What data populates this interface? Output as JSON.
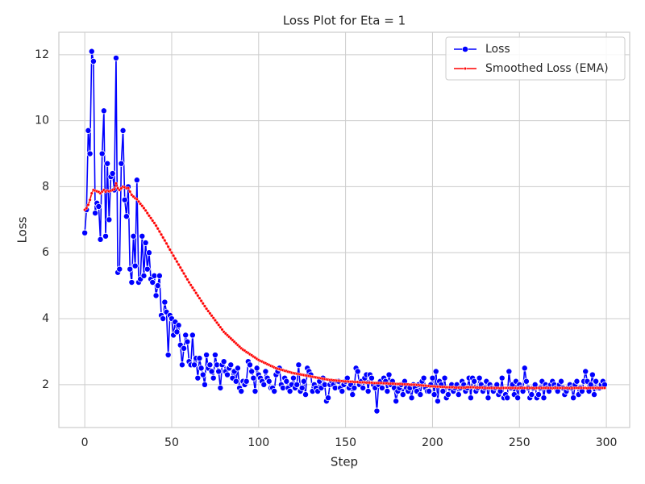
{
  "chart_data": {
    "type": "line",
    "title": "Loss Plot for Eta = 1",
    "x_label": "Step",
    "y_label": "Loss",
    "xlim": [
      -14.9,
      313.4
    ],
    "ylim": [
      0.7,
      12.68
    ],
    "xticks": [
      0,
      50,
      100,
      150,
      200,
      250,
      300
    ],
    "yticks": [
      2,
      4,
      6,
      8,
      10,
      12
    ],
    "grid": true,
    "legend": "upper right",
    "x": [
      0,
      1,
      2,
      3,
      4,
      5,
      6,
      7,
      8,
      9,
      10,
      11,
      12,
      13,
      14,
      15,
      16,
      17,
      18,
      19,
      20,
      21,
      22,
      23,
      24,
      25,
      26,
      27,
      28,
      29,
      30,
      31,
      32,
      33,
      34,
      35,
      36,
      37,
      38,
      39,
      40,
      41,
      42,
      43,
      44,
      45,
      46,
      47,
      48,
      49,
      50,
      51,
      52,
      53,
      54,
      55,
      56,
      57,
      58,
      59,
      60,
      61,
      62,
      63,
      64,
      65,
      66,
      67,
      68,
      69,
      70,
      71,
      72,
      73,
      74,
      75,
      76,
      77,
      78,
      79,
      80,
      81,
      82,
      83,
      84,
      85,
      86,
      87,
      88,
      89,
      90,
      91,
      92,
      93,
      94,
      95,
      96,
      97,
      98,
      99,
      100,
      101,
      102,
      103,
      104,
      105,
      106,
      107,
      108,
      109,
      110,
      111,
      112,
      113,
      114,
      115,
      116,
      117,
      118,
      119,
      120,
      121,
      122,
      123,
      124,
      125,
      126,
      127,
      128,
      129,
      130,
      131,
      132,
      133,
      134,
      135,
      136,
      137,
      138,
      139,
      140,
      141,
      142,
      143,
      144,
      145,
      146,
      147,
      148,
      149,
      150,
      151,
      152,
      153,
      154,
      155,
      156,
      157,
      158,
      159,
      160,
      161,
      162,
      163,
      164,
      165,
      166,
      167,
      168,
      169,
      170,
      171,
      172,
      173,
      174,
      175,
      176,
      177,
      178,
      179,
      180,
      181,
      182,
      183,
      184,
      185,
      186,
      187,
      188,
      189,
      190,
      191,
      192,
      193,
      194,
      195,
      196,
      197,
      198,
      199,
      200,
      201,
      202,
      203,
      204,
      205,
      206,
      207,
      208,
      209,
      210,
      211,
      212,
      213,
      214,
      215,
      216,
      217,
      218,
      219,
      220,
      221,
      222,
      223,
      224,
      225,
      226,
      227,
      228,
      229,
      230,
      231,
      232,
      233,
      234,
      235,
      236,
      237,
      238,
      239,
      240,
      241,
      242,
      243,
      244,
      245,
      246,
      247,
      248,
      249,
      250,
      251,
      252,
      253,
      254,
      255,
      256,
      257,
      258,
      259,
      260,
      261,
      262,
      263,
      264,
      265,
      266,
      267,
      268,
      269,
      270,
      271,
      272,
      273,
      274,
      275,
      276,
      277,
      278,
      279,
      280,
      281,
      282,
      283,
      284,
      285,
      286,
      287,
      288,
      289,
      290,
      291,
      292,
      293,
      294,
      295,
      296,
      297,
      298,
      299
    ],
    "series": [
      {
        "name": "Loss",
        "color": "#0000ff",
        "marker": "large",
        "values": [
          6.6,
          7.3,
          9.7,
          9.0,
          12.1,
          11.8,
          7.2,
          7.5,
          7.4,
          6.4,
          9.0,
          10.3,
          6.5,
          8.7,
          7.0,
          8.3,
          8.4,
          7.9,
          11.9,
          5.4,
          5.5,
          8.7,
          9.7,
          7.6,
          7.1,
          8.0,
          5.5,
          5.1,
          6.5,
          5.6,
          8.2,
          5.1,
          5.2,
          6.5,
          5.3,
          6.3,
          5.5,
          6.0,
          5.2,
          5.1,
          5.3,
          4.7,
          5.0,
          5.3,
          4.1,
          4.0,
          4.5,
          4.2,
          2.9,
          4.1,
          4.0,
          3.5,
          3.9,
          3.6,
          3.8,
          3.2,
          2.6,
          3.1,
          3.5,
          3.3,
          2.7,
          2.6,
          3.5,
          2.6,
          2.8,
          2.2,
          2.8,
          2.5,
          2.3,
          2.0,
          2.9,
          2.5,
          2.6,
          2.4,
          2.2,
          2.9,
          2.6,
          2.4,
          1.9,
          2.6,
          2.7,
          2.4,
          2.3,
          2.5,
          2.6,
          2.2,
          2.4,
          2.1,
          2.5,
          1.9,
          1.8,
          2.1,
          2.0,
          2.1,
          2.7,
          2.6,
          2.4,
          2.2,
          1.8,
          2.5,
          2.3,
          2.2,
          2.1,
          2.0,
          2.4,
          2.2,
          2.1,
          1.9,
          1.9,
          1.8,
          2.3,
          2.4,
          2.5,
          2.0,
          1.9,
          2.2,
          2.1,
          1.9,
          1.8,
          2.0,
          2.2,
          1.9,
          2.0,
          2.6,
          1.8,
          1.9,
          2.1,
          1.7,
          2.5,
          2.4,
          2.3,
          1.8,
          2.0,
          1.9,
          1.8,
          2.1,
          1.9,
          2.2,
          2.0,
          1.5,
          1.6,
          2.0,
          2.1,
          2.0,
          1.9,
          2.1,
          2.1,
          1.9,
          1.8,
          2.0,
          2.1,
          2.2,
          1.9,
          2.0,
          1.7,
          1.9,
          2.5,
          2.4,
          2.0,
          2.1,
          1.9,
          2.2,
          2.3,
          1.8,
          2.3,
          2.2,
          2.0,
          1.9,
          1.2,
          2.0,
          2.1,
          1.9,
          2.2,
          2.1,
          1.8,
          2.3,
          2.0,
          2.1,
          1.9,
          1.5,
          1.8,
          1.9,
          2.0,
          1.7,
          2.1,
          1.9,
          1.8,
          1.9,
          1.6,
          2.0,
          1.9,
          1.8,
          2.0,
          1.7,
          2.1,
          2.2,
          1.9,
          1.8,
          1.8,
          2.0,
          2.2,
          1.7,
          2.4,
          1.5,
          2.1,
          2.0,
          1.8,
          2.2,
          1.6,
          1.7,
          1.9,
          2.0,
          1.8,
          1.9,
          2.0,
          1.7,
          1.9,
          2.1,
          2.0,
          1.8,
          1.9,
          2.2,
          1.6,
          2.2,
          2.1,
          1.8,
          1.9,
          2.2,
          2.0,
          1.8,
          1.9,
          2.1,
          1.6,
          2.0,
          1.9,
          1.8,
          1.9,
          2.0,
          1.7,
          1.8,
          2.2,
          1.6,
          1.7,
          1.6,
          2.4,
          1.9,
          2.0,
          1.7,
          2.1,
          1.6,
          2.0,
          1.9,
          1.8,
          2.5,
          2.1,
          1.9,
          1.6,
          1.7,
          1.9,
          2.0,
          1.6,
          1.7,
          1.9,
          2.1,
          1.6,
          2.0,
          1.9,
          1.8,
          2.0,
          2.1,
          2.0,
          1.9,
          1.8,
          2.0,
          2.1,
          1.9,
          1.7,
          1.8,
          1.9,
          2.0,
          1.9,
          1.6,
          2.0,
          2.1,
          1.7,
          1.9,
          1.8,
          2.1,
          2.4,
          2.1,
          1.8,
          2.0,
          2.3,
          1.7,
          2.1,
          1.9,
          1.9,
          2.0,
          2.1,
          2.0
        ]
      },
      {
        "name": "Smoothed Loss (EMA)",
        "color": "#ff0000",
        "marker": "small",
        "values": [
          7.3,
          7.35,
          7.45,
          7.6,
          7.8,
          7.9,
          7.88,
          7.86,
          7.84,
          7.8,
          7.85,
          7.9,
          7.85,
          7.88,
          7.86,
          7.88,
          7.9,
          7.92,
          8.1,
          7.95,
          7.9,
          7.95,
          8.0,
          7.98,
          7.95,
          7.96,
          7.85,
          7.75,
          7.7,
          7.65,
          7.62,
          7.55,
          7.48,
          7.42,
          7.35,
          7.28,
          7.2,
          7.12,
          7.05,
          6.97,
          6.9,
          6.82,
          6.73,
          6.64,
          6.55,
          6.46,
          6.37,
          6.28,
          6.18,
          6.09,
          6.0,
          5.91,
          5.82,
          5.73,
          5.64,
          5.55,
          5.46,
          5.37,
          5.28,
          5.19,
          5.1,
          5.02,
          4.94,
          4.86,
          4.78,
          4.7,
          4.62,
          4.54,
          4.46,
          4.38,
          4.3,
          4.23,
          4.16,
          4.09,
          4.02,
          3.95,
          3.88,
          3.81,
          3.74,
          3.67,
          3.6,
          3.55,
          3.5,
          3.45,
          3.4,
          3.35,
          3.3,
          3.25,
          3.2,
          3.15,
          3.1,
          3.06,
          3.03,
          2.99,
          2.96,
          2.92,
          2.89,
          2.85,
          2.82,
          2.78,
          2.75,
          2.72,
          2.7,
          2.67,
          2.65,
          2.62,
          2.6,
          2.57,
          2.55,
          2.52,
          2.5,
          2.48,
          2.47,
          2.45,
          2.44,
          2.42,
          2.41,
          2.39,
          2.38,
          2.36,
          2.35,
          2.34,
          2.33,
          2.32,
          2.31,
          2.3,
          2.29,
          2.28,
          2.27,
          2.26,
          2.25,
          2.24,
          2.23,
          2.22,
          2.21,
          2.2,
          2.19,
          2.18,
          2.17,
          2.16,
          2.15,
          2.14,
          2.14,
          2.13,
          2.13,
          2.12,
          2.12,
          2.11,
          2.11,
          2.1,
          2.1,
          2.1,
          2.09,
          2.09,
          2.09,
          2.08,
          2.08,
          2.08,
          2.07,
          2.07,
          2.07,
          2.07,
          2.06,
          2.06,
          2.06,
          2.06,
          2.05,
          2.05,
          2.05,
          2.05,
          2.05,
          2.05,
          2.04,
          2.04,
          2.04,
          2.03,
          2.03,
          2.03,
          2.03,
          2.02,
          2.02,
          2.02,
          2.02,
          2.01,
          2.01,
          2.01,
          2.01,
          2.0,
          2.0,
          2.0,
          2.0,
          1.99,
          1.99,
          1.98,
          1.98,
          1.97,
          1.97,
          1.96,
          1.96,
          1.95,
          1.95,
          1.95,
          1.94,
          1.94,
          1.94,
          1.93,
          1.93,
          1.93,
          1.92,
          1.92,
          1.92,
          1.92,
          1.92,
          1.91,
          1.91,
          1.91,
          1.91,
          1.91,
          1.91,
          1.91,
          1.92,
          1.92,
          1.92,
          1.92,
          1.92,
          1.91,
          1.91,
          1.91,
          1.91,
          1.91,
          1.9,
          1.9,
          1.9,
          1.9,
          1.9,
          1.9,
          1.9,
          1.9,
          1.9,
          1.89,
          1.9,
          1.9,
          1.9,
          1.9,
          1.9,
          1.9,
          1.9,
          1.9,
          1.9,
          1.89,
          1.9,
          1.9,
          1.9,
          1.9,
          1.9,
          1.9,
          1.9,
          1.9,
          1.9,
          1.89,
          1.9,
          1.9,
          1.9,
          1.9,
          1.9,
          1.9,
          1.9,
          1.9,
          1.9,
          1.89,
          1.9,
          1.9,
          1.9,
          1.9,
          1.9,
          1.9,
          1.9,
          1.9,
          1.9,
          1.89,
          1.9,
          1.9,
          1.9,
          1.9,
          1.9,
          1.9,
          1.9,
          1.9,
          1.9,
          1.89,
          1.9,
          1.9,
          1.9,
          1.9,
          1.9,
          1.9,
          1.9,
          1.9,
          1.9,
          1.9
        ]
      }
    ]
  }
}
